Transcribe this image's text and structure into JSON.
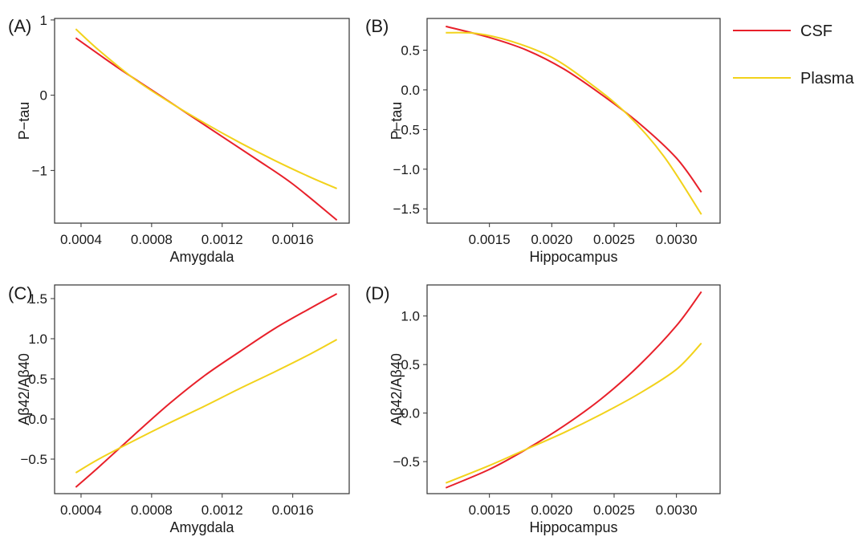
{
  "legend": {
    "position": "top-right",
    "entries": [
      {
        "label": "CSF",
        "color": "#e8202a"
      },
      {
        "label": "Plasma",
        "color": "#f2d21b"
      }
    ]
  },
  "chart_data": [
    {
      "type": "line",
      "panel": "(A)",
      "xlabel": "Amygdala",
      "ylabel": "P−tau",
      "xlim": [
        0.00025,
        0.00192
      ],
      "ylim": [
        -1.7,
        1.02
      ],
      "xticks": [
        0.0004,
        0.0008,
        0.0012,
        0.0016
      ],
      "xtick_labels": [
        "0.0004",
        "0.0008",
        "0.0012",
        "0.0016"
      ],
      "yticks": [
        -1,
        0,
        1
      ],
      "ytick_labels": [
        "−1",
        "0",
        "1"
      ],
      "grid": false,
      "series": [
        {
          "name": "CSF",
          "color": "#e8202a",
          "x": [
            0.00037,
            0.0006,
            0.0008,
            0.001,
            0.0012,
            0.0014,
            0.0016,
            0.00185
          ],
          "y": [
            0.76,
            0.38,
            0.07,
            -0.24,
            -0.55,
            -0.86,
            -1.18,
            -1.66
          ]
        },
        {
          "name": "Plasma",
          "color": "#f2d21b",
          "x": [
            0.00037,
            0.0005,
            0.0007,
            0.0009,
            0.0011,
            0.0013,
            0.0015,
            0.0017,
            0.00185
          ],
          "y": [
            0.88,
            0.6,
            0.22,
            -0.09,
            -0.37,
            -0.63,
            -0.87,
            -1.09,
            -1.24
          ]
        }
      ]
    },
    {
      "type": "line",
      "panel": "(B)",
      "xlabel": "Hippocampus",
      "ylabel": "P−tau",
      "xlim": [
        0.001,
        0.00335
      ],
      "ylim": [
        -1.68,
        0.9
      ],
      "xticks": [
        0.0015,
        0.002,
        0.0025,
        0.003
      ],
      "xtick_labels": [
        "0.0015",
        "0.0020",
        "0.0025",
        "0.0030"
      ],
      "yticks": [
        0.5,
        0.0,
        -0.5,
        -1.0,
        -1.5
      ],
      "ytick_labels": [
        "0.5",
        "0.0",
        "−0.5",
        "−1.0",
        "−1.5"
      ],
      "grid": false,
      "series": [
        {
          "name": "CSF",
          "color": "#e8202a",
          "x": [
            0.00115,
            0.0015,
            0.0018,
            0.0021,
            0.0024,
            0.0027,
            0.003,
            0.0032
          ],
          "y": [
            0.8,
            0.66,
            0.5,
            0.26,
            -0.06,
            -0.42,
            -0.86,
            -1.29
          ]
        },
        {
          "name": "Plasma",
          "color": "#f2d21b",
          "x": [
            0.00115,
            0.0014,
            0.0017,
            0.002,
            0.0023,
            0.0026,
            0.0029,
            0.0032
          ],
          "y": [
            0.72,
            0.71,
            0.6,
            0.41,
            0.09,
            -0.3,
            -0.84,
            -1.57
          ]
        }
      ]
    },
    {
      "type": "line",
      "panel": "(C)",
      "xlabel": "Amygdala",
      "ylabel": "Aβ42/Aβ40",
      "xlim": [
        0.00025,
        0.00192
      ],
      "ylim": [
        -0.93,
        1.67
      ],
      "xticks": [
        0.0004,
        0.0008,
        0.0012,
        0.0016
      ],
      "xtick_labels": [
        "0.0004",
        "0.0008",
        "0.0012",
        "0.0016"
      ],
      "yticks": [
        1.5,
        1.0,
        0.5,
        0.0,
        -0.5
      ],
      "ytick_labels": [
        "1.5",
        "1.0",
        "0.5",
        "0.0",
        "−0.5"
      ],
      "grid": false,
      "series": [
        {
          "name": "CSF",
          "color": "#e8202a",
          "x": [
            0.00037,
            0.0005,
            0.0007,
            0.0009,
            0.0011,
            0.0013,
            0.0015,
            0.0017,
            0.00185
          ],
          "y": [
            -0.85,
            -0.6,
            -0.2,
            0.19,
            0.54,
            0.84,
            1.13,
            1.38,
            1.56
          ]
        },
        {
          "name": "Plasma",
          "color": "#f2d21b",
          "x": [
            0.00037,
            0.0005,
            0.0007,
            0.0009,
            0.0011,
            0.0013,
            0.0015,
            0.0017,
            0.00185
          ],
          "y": [
            -0.67,
            -0.5,
            -0.27,
            -0.05,
            0.16,
            0.38,
            0.59,
            0.81,
            0.99
          ]
        }
      ]
    },
    {
      "type": "line",
      "panel": "(D)",
      "xlabel": "Hippocampus",
      "ylabel": "Aβ42/Aβ40",
      "xlim": [
        0.001,
        0.00335
      ],
      "ylim": [
        -0.83,
        1.32
      ],
      "xticks": [
        0.0015,
        0.002,
        0.0025,
        0.003
      ],
      "xtick_labels": [
        "0.0015",
        "0.0020",
        "0.0025",
        "0.0030"
      ],
      "yticks": [
        1.0,
        0.5,
        0.0,
        -0.5
      ],
      "ytick_labels": [
        "1.0",
        "0.5",
        "0.0",
        "−0.5"
      ],
      "grid": false,
      "series": [
        {
          "name": "CSF",
          "color": "#e8202a",
          "x": [
            0.00115,
            0.0015,
            0.0018,
            0.0021,
            0.0024,
            0.0027,
            0.003,
            0.0032
          ],
          "y": [
            -0.77,
            -0.58,
            -0.37,
            -0.13,
            0.15,
            0.49,
            0.9,
            1.25
          ]
        },
        {
          "name": "Plasma",
          "color": "#f2d21b",
          "x": [
            0.00115,
            0.0015,
            0.0018,
            0.0021,
            0.0024,
            0.0027,
            0.003,
            0.0032
          ],
          "y": [
            -0.72,
            -0.54,
            -0.37,
            -0.2,
            -0.01,
            0.2,
            0.45,
            0.72
          ]
        }
      ]
    }
  ]
}
